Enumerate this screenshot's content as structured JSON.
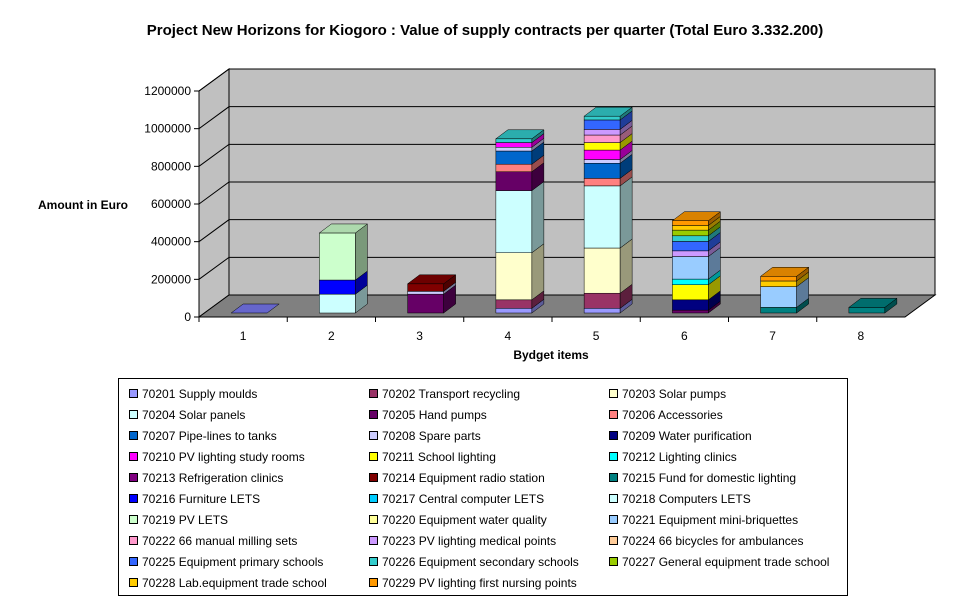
{
  "chart_data": {
    "type": "bar",
    "stacked": true,
    "three_d": true,
    "title": "Project New Horizons for Kiogoro : Value of supply contracts per quarter (Total Euro 3.332.200)",
    "xlabel": "Bydget items",
    "ylabel": "Amount in Euro",
    "ylim": [
      0,
      1200000
    ],
    "yticks": [
      "0",
      "200000",
      "400000",
      "600000",
      "800000",
      "1000000",
      "1200000"
    ],
    "grid": true,
    "legend_position": "bottom",
    "categories": [
      "1",
      "2",
      "3",
      "4",
      "5",
      "6",
      "7",
      "8"
    ],
    "series": [
      {
        "name": "70201 Supply moulds",
        "color": "#9999ff",
        "values": [
          0,
          0,
          0,
          25000,
          25000,
          0,
          0,
          0
        ]
      },
      {
        "name": "70202 Transport recycling",
        "color": "#993366",
        "values": [
          0,
          0,
          0,
          45000,
          80000,
          0,
          0,
          0
        ]
      },
      {
        "name": "70203 Solar pumps",
        "color": "#ffffcc",
        "values": [
          0,
          0,
          0,
          250000,
          240000,
          0,
          0,
          0
        ]
      },
      {
        "name": "70204 Solar panels",
        "color": "#ccffff",
        "values": [
          0,
          100000,
          0,
          330000,
          330000,
          0,
          0,
          0
        ]
      },
      {
        "name": "70205 Hand pumps",
        "color": "#660066",
        "values": [
          0,
          0,
          100000,
          100000,
          0,
          15000,
          0,
          0
        ]
      },
      {
        "name": "70206 Accessories",
        "color": "#ff8080",
        "values": [
          0,
          0,
          0,
          40000,
          40000,
          0,
          0,
          0
        ]
      },
      {
        "name": "70207 Pipe-lines to tanks",
        "color": "#0066cc",
        "values": [
          0,
          0,
          0,
          70000,
          80000,
          0,
          0,
          0
        ]
      },
      {
        "name": "70208 Spare parts",
        "color": "#ccccff",
        "values": [
          0,
          0,
          15000,
          20000,
          20000,
          0,
          0,
          0
        ]
      },
      {
        "name": "70209 Water purification",
        "color": "#000080",
        "values": [
          0,
          0,
          0,
          0,
          0,
          55000,
          0,
          0
        ]
      },
      {
        "name": "70210 PV lighting study rooms",
        "color": "#ff00ff",
        "values": [
          0,
          0,
          0,
          25000,
          50000,
          0,
          0,
          0
        ]
      },
      {
        "name": "70211 School lighting",
        "color": "#ffff00",
        "values": [
          0,
          0,
          0,
          0,
          40000,
          80000,
          0,
          0
        ]
      },
      {
        "name": "70212 Lighting clinics",
        "color": "#00ffff",
        "values": [
          0,
          0,
          0,
          0,
          0,
          30000,
          0,
          0
        ]
      },
      {
        "name": "70213 Refrigeration clinics",
        "color": "#800080",
        "values": [
          0,
          0,
          0,
          0,
          0,
          0,
          0,
          0
        ]
      },
      {
        "name": "70214 Equipment radio station",
        "color": "#800000",
        "values": [
          0,
          0,
          40000,
          0,
          0,
          0,
          0,
          0
        ]
      },
      {
        "name": "70215 Fund for domestic lighting",
        "color": "#008080",
        "values": [
          0,
          0,
          0,
          0,
          0,
          0,
          30000,
          30000
        ]
      },
      {
        "name": "70216 Furniture LETS",
        "color": "#0000ff",
        "values": [
          0,
          75000,
          0,
          0,
          0,
          0,
          0,
          0
        ]
      },
      {
        "name": "70217 Central computer LETS",
        "color": "#00ccff",
        "values": [
          0,
          0,
          0,
          0,
          0,
          0,
          0,
          0
        ]
      },
      {
        "name": "70218 Computers LETS",
        "color": "#ccffff",
        "values": [
          0,
          0,
          0,
          0,
          0,
          0,
          0,
          0
        ]
      },
      {
        "name": "70219 PV LETS",
        "color": "#ccffcc",
        "values": [
          0,
          250000,
          0,
          0,
          0,
          0,
          0,
          0
        ]
      },
      {
        "name": "70220 Equipment water quality",
        "color": "#ffff99",
        "values": [
          0,
          0,
          0,
          0,
          0,
          0,
          0,
          0
        ]
      },
      {
        "name": "70221 Equipment mini-briquettes",
        "color": "#99ccff",
        "values": [
          0,
          0,
          0,
          0,
          0,
          120000,
          110000,
          0
        ]
      },
      {
        "name": "70222 66 manual milling sets",
        "color": "#ff99cc",
        "values": [
          0,
          0,
          0,
          0,
          40000,
          0,
          0,
          0
        ]
      },
      {
        "name": "70223 PV lighting medical points",
        "color": "#cc99ff",
        "values": [
          0,
          0,
          0,
          0,
          30000,
          30000,
          0,
          0
        ]
      },
      {
        "name": "70224 66 bicycles for ambulances",
        "color": "#ffcc99",
        "values": [
          0,
          0,
          0,
          0,
          0,
          0,
          0,
          0
        ]
      },
      {
        "name": "70225 Equipment primary schools",
        "color": "#3366ff",
        "values": [
          0,
          0,
          0,
          0,
          50000,
          50000,
          0,
          0
        ]
      },
      {
        "name": "70226 Equipment secondary schools",
        "color": "#33cccc",
        "values": [
          0,
          0,
          0,
          20000,
          20000,
          30000,
          0,
          0
        ]
      },
      {
        "name": "70227 General equipment trade school",
        "color": "#99cc00",
        "values": [
          0,
          0,
          0,
          0,
          0,
          30000,
          0,
          0
        ]
      },
      {
        "name": "70228 Lab.equipment trade school",
        "color": "#ffcc00",
        "values": [
          0,
          0,
          0,
          0,
          0,
          25000,
          30000,
          0
        ]
      },
      {
        "name": "70229 PV lighting first nursing points",
        "color": "#ff9900",
        "values": [
          0,
          0,
          0,
          0,
          0,
          25000,
          25000,
          0
        ]
      }
    ]
  }
}
